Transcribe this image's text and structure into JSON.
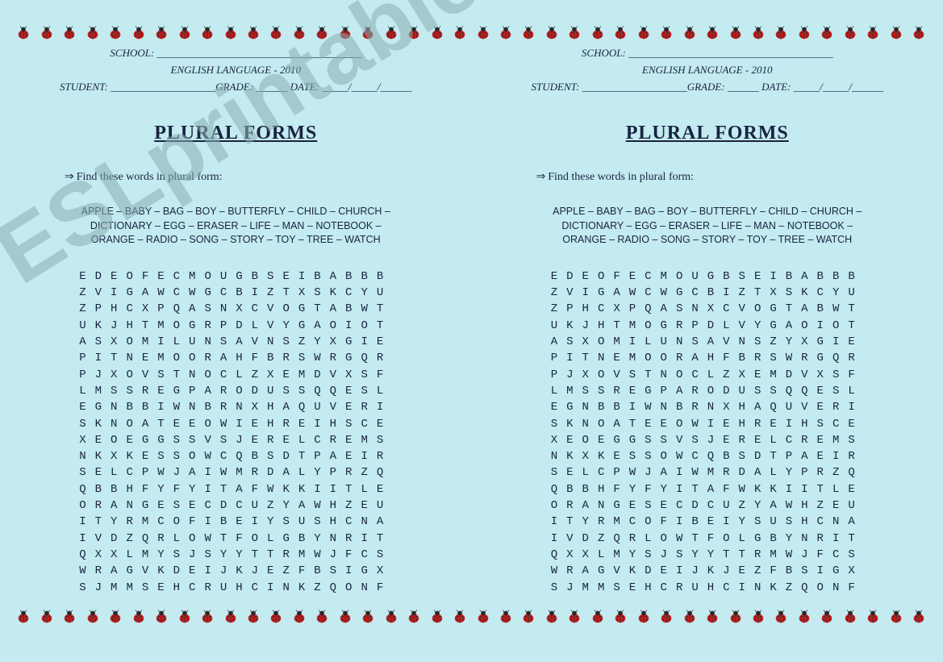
{
  "watermark": "ESLprintables.com",
  "borders": {
    "ladybug_count": 40
  },
  "worksheet": {
    "header": {
      "school_label": "SCHOOL: _______________________________________",
      "course": "ENGLISH LANGUAGE - 2010",
      "student_line": "STUDENT: ____________________GRADE: ______ DATE: _____/_____/______"
    },
    "title": "PLURAL FORMS",
    "instruction": "Find these words in plural form:",
    "wordlist_lines": [
      "APPLE – BABY – BAG – BOY – BUTTERFLY – CHILD – CHURCH –",
      "DICTIONARY – EGG – ERASER – LIFE – MAN – NOTEBOOK –",
      "ORANGE – RADIO – SONG – STORY – TOY – TREE – WATCH"
    ],
    "grid_rows": [
      "EDEOFECMOUGBSEIBABBB",
      "ZVIGAWCWGCBIZTXSKCYU",
      "ZPHCXPQASNXCVOGTABWT",
      "UKJHTMOGRPDLVYGAOIOT",
      "ASXOMILUNSAVNSZYXGIE",
      "PITNEMOORAHFBRSWRGQR",
      "PJXOVSTNOCLZXEMDVXSF",
      "LMSSREGPARODUSSQQESL",
      "EGNBBIWNBRNXHAQUVERI",
      "SKNOATEEOWIEHREIHSCE",
      "XEOEGGSSVSJERELCREMS",
      "NKXKESSOWCQBSDTPAEIR",
      "SELCPWJAIWMRDALYPRZQ",
      "QBBHFYFYITAFWKKIITLE",
      "ORANGESECDCUZYAWHZEU",
      "ITYRMCOFIBEIYSUSHCNA",
      "IVDZQRLOWTFOLGBYNRIT",
      "QXXLMYSJSYYTTRMWJFCS",
      "WRAGVKDEIJKJEZFBSIGX",
      "SJMMSEHCRUHCINKZQONF"
    ]
  },
  "colors": {
    "background": "#c3ebf0",
    "text": "#1a2340",
    "ladybug_body": "#c41e1e",
    "ladybug_head": "#2a2a2a",
    "watermark": "rgba(138,174,179,0.55)"
  }
}
